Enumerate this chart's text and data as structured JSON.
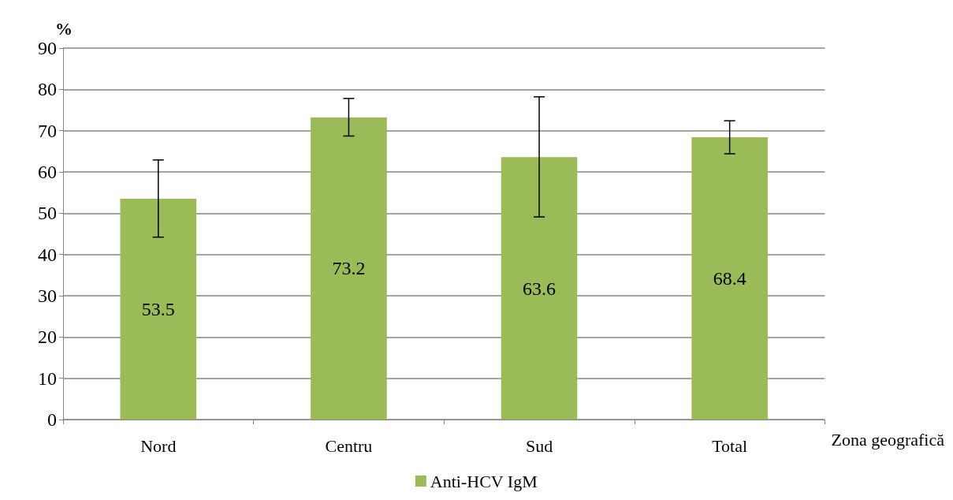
{
  "chart_data": {
    "type": "bar",
    "ylabel": "%",
    "xlabel": "Zona geografică",
    "categories": [
      "Nord",
      "Centru",
      "Sud",
      "Total"
    ],
    "series": [
      {
        "name": "Anti-HCV IgM",
        "color": "#9bbb59",
        "values": [
          53.5,
          73.2,
          63.6,
          68.4
        ],
        "errors": [
          [
            44.2,
            62.9
          ],
          [
            68.7,
            77.8
          ],
          [
            49.1,
            78.2
          ],
          [
            64.4,
            72.4
          ]
        ]
      }
    ],
    "ylim": [
      0,
      90
    ],
    "yticks": [
      0,
      10,
      20,
      30,
      40,
      50,
      60,
      70,
      80,
      90
    ],
    "grid": "y",
    "legend": "bottom",
    "data_labels": true
  }
}
